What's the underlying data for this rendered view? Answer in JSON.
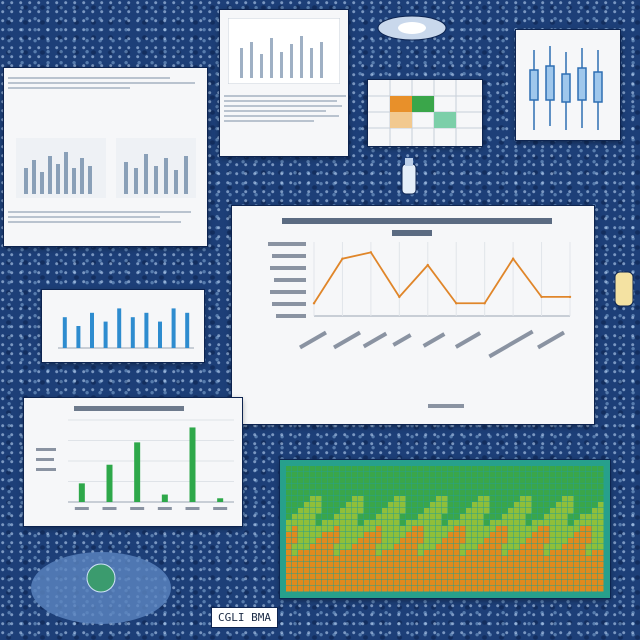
{
  "colors": {
    "background": "#1d3f78",
    "panel": "#f6f7f9",
    "line_series": "#e0862a",
    "bar_green": "#2ea84a",
    "bar_blue": "#2e8ccf",
    "heatmap_green": "#3aa64a",
    "heatmap_orange": "#e08a1e"
  },
  "footer_chip": {
    "text": "CGLI BMA"
  },
  "main_chart": {
    "chart_data": {
      "type": "line",
      "title": "",
      "xlabel": "",
      "ylabel": "",
      "series": [
        {
          "values": [
            2,
            9,
            10,
            3,
            8,
            2,
            2,
            9,
            3,
            3
          ]
        }
      ],
      "ylim": [
        0,
        11
      ],
      "grid": "vertical"
    }
  },
  "green_bar_chart": {
    "chart_data": {
      "type": "bar",
      "title": "",
      "values": [
        5,
        10,
        16,
        2,
        20,
        1
      ],
      "ylim": [
        0,
        22
      ],
      "grid": "horizontal"
    }
  },
  "blue_bar_chart": {
    "chart_data": {
      "type": "bar",
      "values": [
        7,
        5,
        8,
        6,
        9,
        7,
        8,
        6,
        9,
        8
      ],
      "ylim": [
        0,
        10
      ]
    }
  }
}
